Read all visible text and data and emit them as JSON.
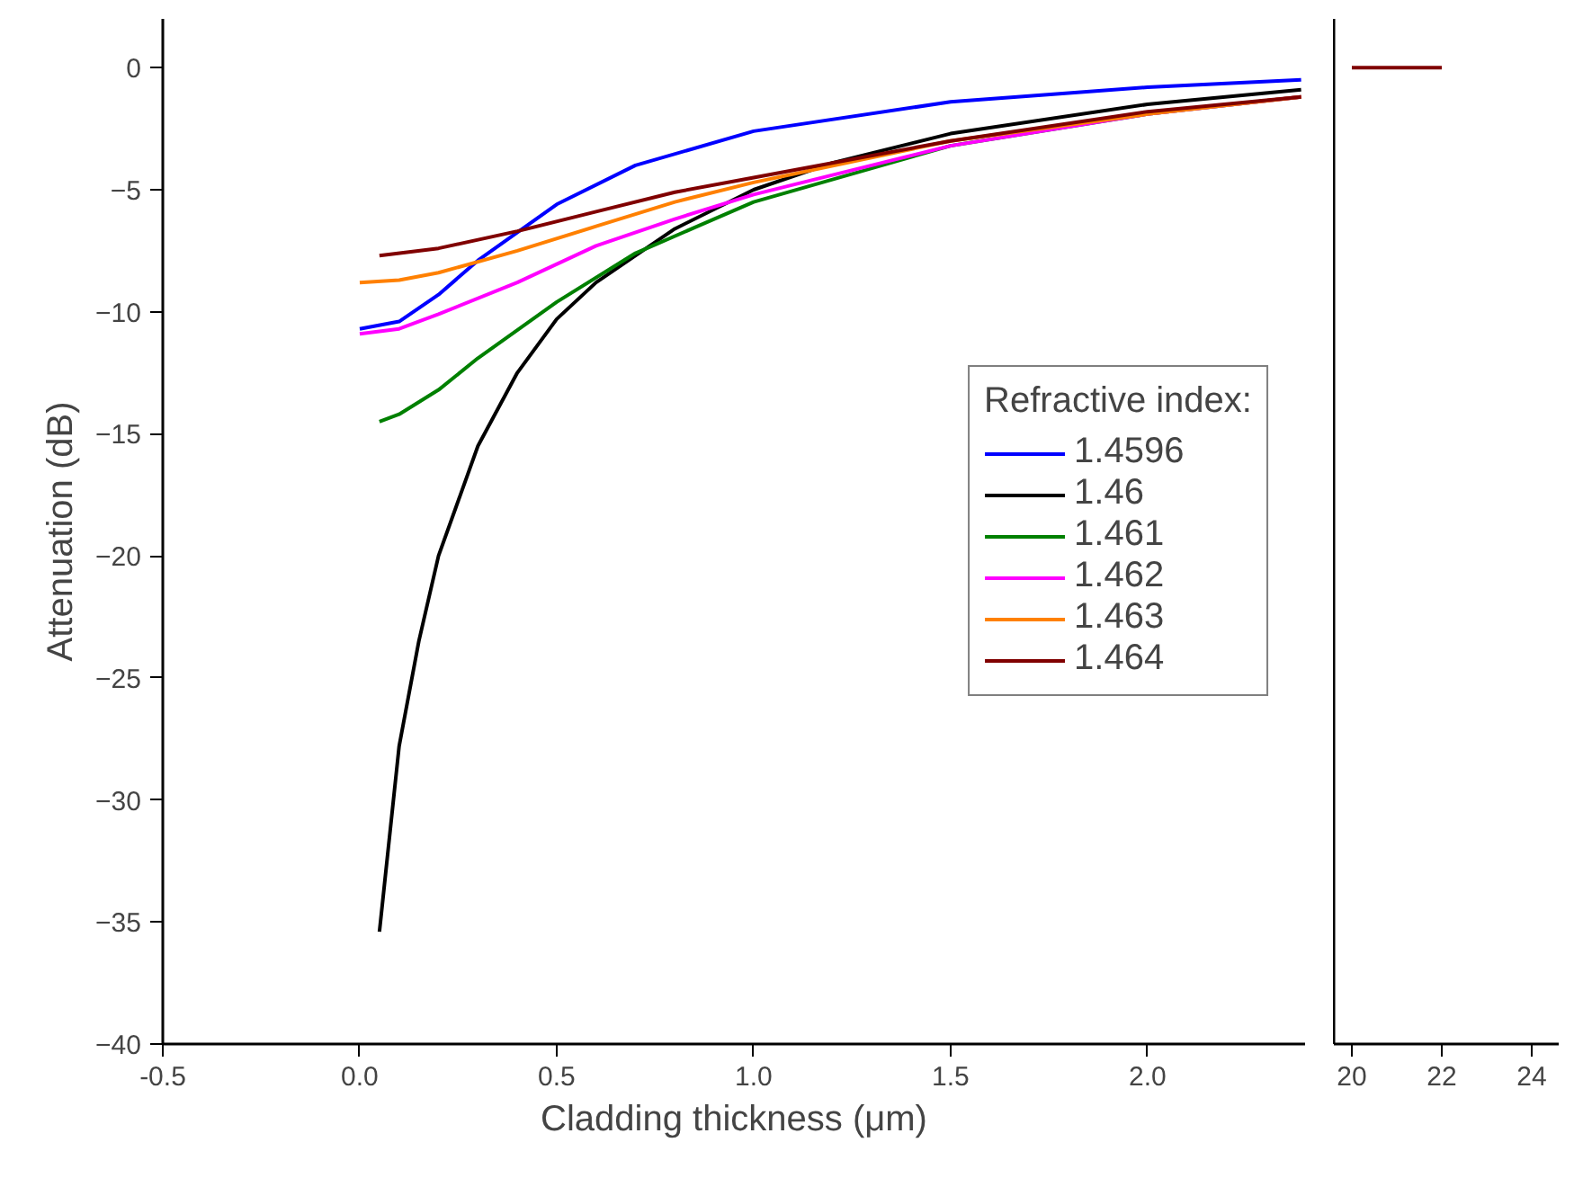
{
  "chart_data": [
    {
      "type": "line",
      "xlabel": "Cladding thickness (μm)",
      "ylabel": "Attenuation (dB)",
      "legend_title": "Refractive index:",
      "legend": "right",
      "grid": false,
      "xlim": [
        -0.5,
        2.4
      ],
      "xticks": [
        {
          "value": -0.5,
          "label": "-0.5"
        },
        {
          "value": 0,
          "label": "0.0"
        },
        {
          "value": 0.5,
          "label": "0.5"
        },
        {
          "value": 1,
          "label": "1.0"
        },
        {
          "value": 1.5,
          "label": "1.5"
        },
        {
          "value": 2,
          "label": "2.0"
        }
      ],
      "ylim": [
        -40,
        2
      ],
      "yticks": [
        -40,
        -35,
        -30,
        -25,
        -20,
        -15,
        -10,
        -5,
        0
      ],
      "series": [
        {
          "name": "1.4596",
          "color": "#0000ff",
          "x": [
            0.0,
            0.1,
            0.2,
            0.3,
            0.5,
            0.7,
            1.0,
            1.5,
            2.0,
            2.39
          ],
          "values": [
            -10.7,
            -10.4,
            -9.3,
            -7.9,
            -5.6,
            -4.0,
            -2.6,
            -1.4,
            -0.8,
            -0.5
          ]
        },
        {
          "name": "1.46",
          "color": "#000000",
          "x": [
            0.05,
            0.1,
            0.15,
            0.2,
            0.3,
            0.4,
            0.5,
            0.6,
            0.8,
            1.0,
            1.2,
            1.5,
            2.0,
            2.39
          ],
          "values": [
            -35.4,
            -27.8,
            -23.5,
            -20.0,
            -15.5,
            -12.5,
            -10.3,
            -8.8,
            -6.6,
            -5.0,
            -3.9,
            -2.7,
            -1.5,
            -0.9
          ]
        },
        {
          "name": "1.461",
          "color": "#008000",
          "x": [
            0.05,
            0.1,
            0.2,
            0.3,
            0.5,
            0.7,
            1.0,
            1.5,
            2.0,
            2.39
          ],
          "values": [
            -14.5,
            -14.2,
            -13.2,
            -11.9,
            -9.6,
            -7.6,
            -5.5,
            -3.2,
            -1.9,
            -1.2
          ]
        },
        {
          "name": "1.462",
          "color": "#ff00ff",
          "x": [
            0.0,
            0.1,
            0.2,
            0.4,
            0.6,
            0.8,
            1.0,
            1.5,
            2.0,
            2.39
          ],
          "values": [
            -10.9,
            -10.7,
            -10.1,
            -8.8,
            -7.3,
            -6.2,
            -5.2,
            -3.2,
            -1.9,
            -1.2
          ]
        },
        {
          "name": "1.463",
          "color": "#ff8000",
          "x": [
            0.0,
            0.1,
            0.2,
            0.4,
            0.6,
            0.8,
            1.0,
            1.5,
            2.0,
            2.39
          ],
          "values": [
            -8.8,
            -8.7,
            -8.4,
            -7.5,
            -6.5,
            -5.5,
            -4.7,
            -3.0,
            -1.9,
            -1.2
          ]
        },
        {
          "name": "1.464",
          "color": "#800000",
          "x": [
            0.05,
            0.2,
            0.4,
            0.6,
            0.8,
            1.0,
            1.5,
            2.0,
            2.39
          ],
          "values": [
            -7.7,
            -7.4,
            -6.7,
            -5.9,
            -5.1,
            -4.5,
            -3.0,
            -1.8,
            -1.2
          ]
        }
      ]
    },
    {
      "type": "line",
      "tick_labels": "x",
      "grid": false,
      "xlim": [
        19.6,
        24.6
      ],
      "xticks": [
        20,
        22,
        24
      ],
      "ylim": [
        -40,
        2
      ],
      "series": [
        {
          "color": "#800000",
          "x": [
            20,
            22
          ],
          "values": [
            0,
            0
          ]
        }
      ]
    }
  ]
}
